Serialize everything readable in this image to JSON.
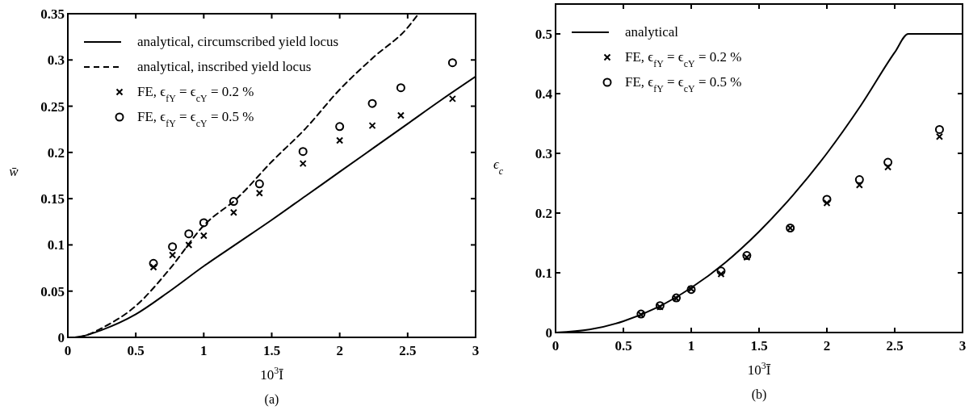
{
  "chart_data": [
    {
      "type": "line",
      "xlabel": "10$^{3}$Ī",
      "ylabel": "w̄",
      "annotations": [
        "(a)"
      ],
      "xlim": [
        0,
        3
      ],
      "ylim": [
        0,
        0.35
      ],
      "xticks": [
        0,
        0.5,
        1,
        1.5,
        2,
        2.5,
        3
      ],
      "yticks": [
        0,
        0.05,
        0.1,
        0.15,
        0.2,
        0.25,
        0.3,
        0.35
      ],
      "legend": "top left",
      "grid": false,
      "series": [
        {
          "name": "analytical, circumscribed yield locus",
          "type": "line",
          "line_style": "solid",
          "marker": "none",
          "color": "#000000",
          "x": [
            0.05,
            0.1,
            0.25,
            0.5,
            0.75,
            1,
            1.25,
            1.5,
            1.75,
            2,
            2.25,
            2.5,
            2.75,
            3
          ],
          "values": [
            0,
            0.001,
            0.008,
            0.025,
            0.05,
            0.077,
            0.102,
            0.127,
            0.153,
            0.179,
            0.205,
            0.231,
            0.257,
            0.282
          ]
        },
        {
          "name": "analytical, inscribed yield locus",
          "type": "line",
          "line_style": "dashed",
          "marker": "none",
          "color": "#000000",
          "x": [
            0.08,
            0.15,
            0.25,
            0.5,
            0.75,
            1,
            1.25,
            1.5,
            1.75,
            2,
            2.25,
            2.5,
            2.58
          ],
          "values": [
            0,
            0.003,
            0.01,
            0.034,
            0.074,
            0.121,
            0.151,
            0.19,
            0.226,
            0.268,
            0.303,
            0.335,
            0.35
          ]
        },
        {
          "name": "FE, ϵ$_{fY}$ = ϵ$_{cY}$ = 0.2 %",
          "type": "scatter",
          "marker": "cross",
          "color": "#000000",
          "x": [
            0.63,
            0.77,
            0.89,
            1,
            1.22,
            1.41,
            1.73,
            2,
            2.24,
            2.45,
            2.83
          ],
          "values": [
            0.076,
            0.089,
            0.1,
            0.11,
            0.135,
            0.156,
            0.188,
            0.213,
            0.229,
            0.24,
            0.258
          ]
        },
        {
          "name": "FE, ϵ$_{fY}$ = ϵ$_{cY}$ = 0.5 %",
          "type": "scatter",
          "marker": "circle",
          "color": "#000000",
          "x": [
            0.63,
            0.77,
            0.89,
            1,
            1.22,
            1.41,
            1.73,
            2,
            2.24,
            2.45,
            2.83
          ],
          "values": [
            0.08,
            0.098,
            0.112,
            0.124,
            0.147,
            0.166,
            0.201,
            0.228,
            0.253,
            0.27,
            0.297
          ]
        }
      ]
    },
    {
      "type": "line",
      "xlabel": "10$^{3}$Ī",
      "ylabel": "ϵ$_{c}$",
      "annotations": [
        "(b)"
      ],
      "xlim": [
        0,
        3
      ],
      "ylim": [
        0,
        0.55
      ],
      "xticks": [
        0,
        0.5,
        1,
        1.5,
        2,
        2.5,
        3
      ],
      "yticks": [
        0,
        0.1,
        0.2,
        0.3,
        0.4,
        0.5
      ],
      "legend": "top left",
      "grid": false,
      "series": [
        {
          "name": "analytical",
          "type": "line",
          "line_style": "solid",
          "marker": "none",
          "color": "#000000",
          "x": [
            0,
            0.25,
            0.5,
            0.75,
            1,
            1.25,
            1.5,
            1.75,
            2,
            2.25,
            2.5,
            2.6,
            3
          ],
          "values": [
            0,
            0.005,
            0.019,
            0.042,
            0.075,
            0.117,
            0.169,
            0.23,
            0.3,
            0.38,
            0.469,
            0.5,
            0.5
          ]
        },
        {
          "name": "FE, ϵ$_{fY}$ = ϵ$_{cY}$ = 0.2 %",
          "type": "scatter",
          "marker": "cross",
          "color": "#000000",
          "x": [
            0.63,
            0.77,
            0.89,
            1,
            1.22,
            1.41,
            1.73,
            2,
            2.24,
            2.45,
            2.83
          ],
          "values": [
            0.03,
            0.043,
            0.057,
            0.073,
            0.098,
            0.126,
            0.175,
            0.217,
            0.247,
            0.277,
            0.328
          ]
        },
        {
          "name": "FE, ϵ$_{fY}$ = ϵ$_{cY}$ = 0.5 %",
          "type": "scatter",
          "marker": "circle",
          "color": "#000000",
          "x": [
            0.63,
            0.77,
            0.89,
            1,
            1.22,
            1.41,
            1.73,
            2,
            2.24,
            2.45,
            2.83
          ],
          "values": [
            0.031,
            0.045,
            0.058,
            0.072,
            0.103,
            0.129,
            0.175,
            0.223,
            0.256,
            0.285,
            0.34
          ]
        }
      ]
    }
  ]
}
